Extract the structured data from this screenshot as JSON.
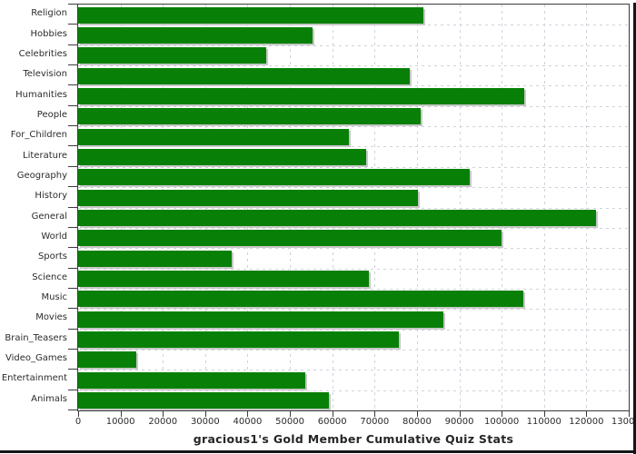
{
  "chart_data": {
    "type": "bar",
    "orientation": "horizontal",
    "title": "gracious1's Gold Member Cumulative Quiz Stats",
    "categories": [
      "Religion",
      "Hobbies",
      "Celebrities",
      "Television",
      "Humanities",
      "People",
      "For_Children",
      "Literature",
      "Geography",
      "History",
      "General",
      "World",
      "Sports",
      "Science",
      "Music",
      "Movies",
      "Brain_Teasers",
      "Video_Games",
      "Entertainment",
      "Animals"
    ],
    "values": [
      81600,
      55400,
      44500,
      78200,
      105400,
      80800,
      63900,
      68000,
      92500,
      80300,
      122300,
      99900,
      36300,
      68600,
      105200,
      86200,
      75700,
      13800,
      53700,
      59300
    ],
    "xlim": [
      0,
      130000
    ],
    "x_tick_interval": 10000,
    "x_tick_labels": [
      "0",
      "10000",
      "20000",
      "30000",
      "40000",
      "50000",
      "60000",
      "70000",
      "80000",
      "90000",
      "100000",
      "110000",
      "120000",
      "130000"
    ],
    "grid": true,
    "legend": "none",
    "colors": {
      "bar": "#088008",
      "bar_shadow": "#c8c8c8",
      "gridline": "#cdd3da",
      "axis": "#3a3a3a",
      "text": "#2b2b2b",
      "frame": "#141414",
      "background": "#ffffff"
    }
  }
}
